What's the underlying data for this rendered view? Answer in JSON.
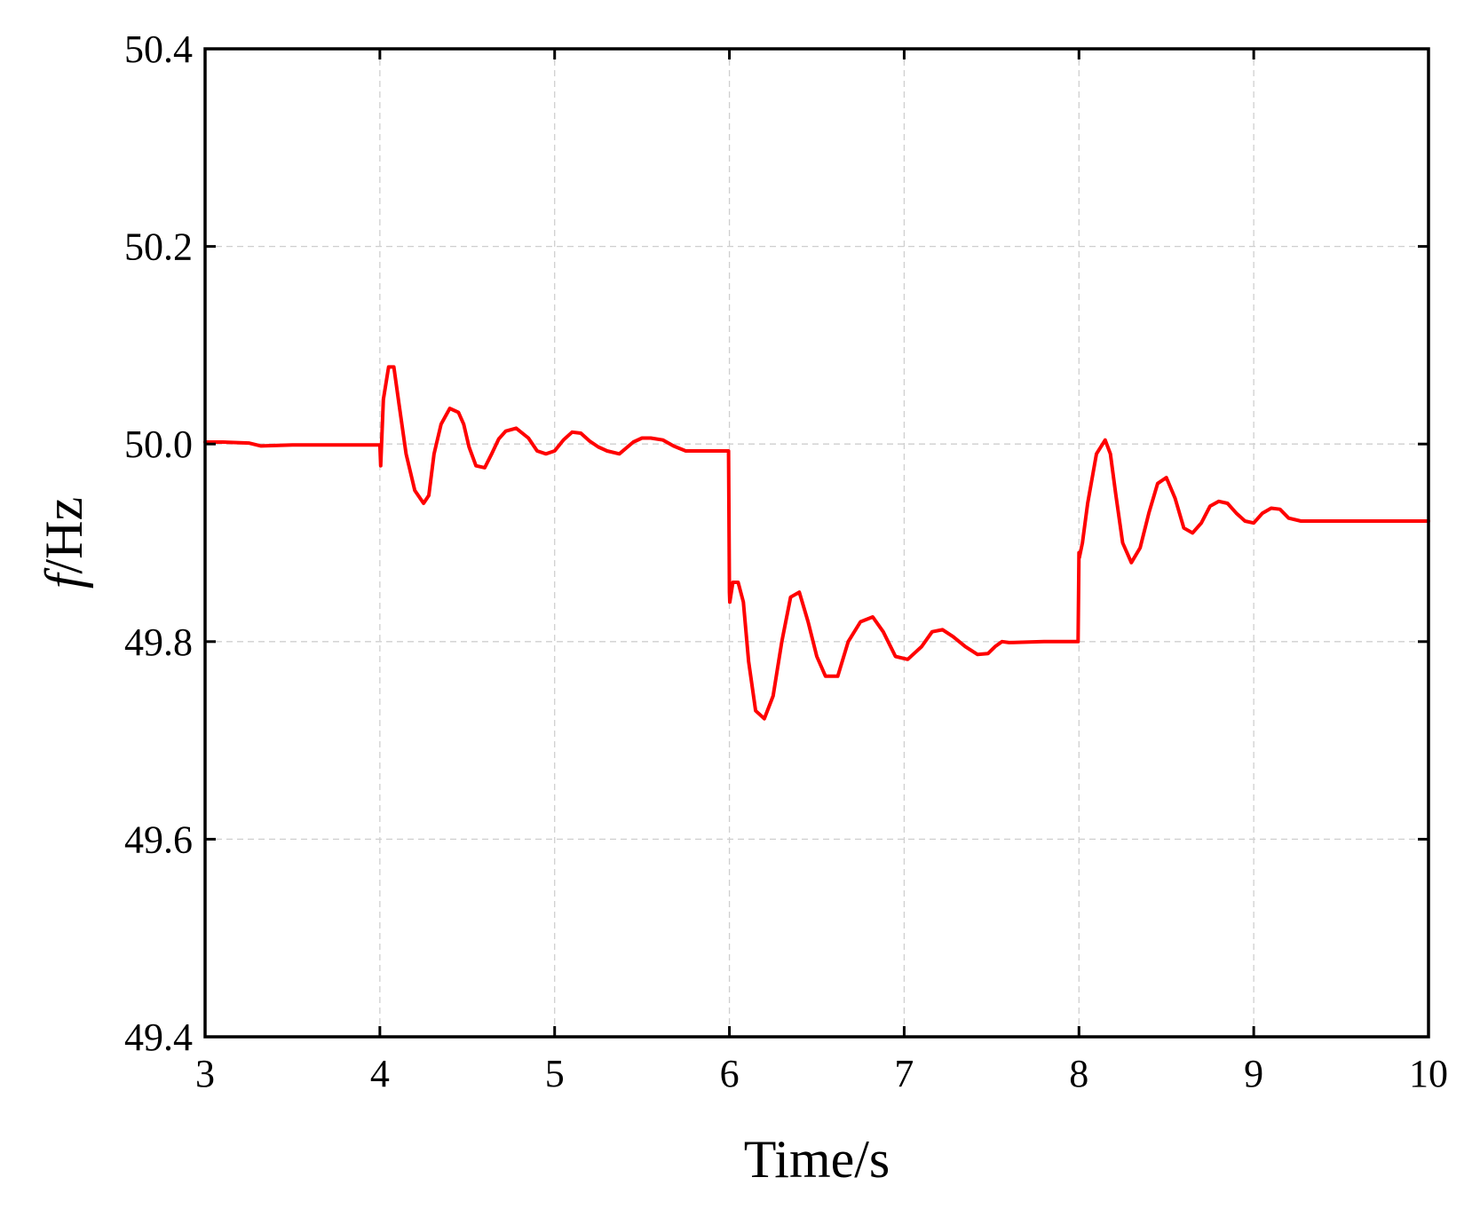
{
  "chart_data": {
    "type": "line",
    "title": "",
    "xlabel": "Time/s",
    "ylabel_italic": "f",
    "ylabel_rest": "/Hz",
    "xlim": [
      3,
      10
    ],
    "ylim": [
      49.4,
      50.4
    ],
    "xticks": [
      3,
      4,
      5,
      6,
      7,
      8,
      9,
      10
    ],
    "yticks": [
      49.4,
      49.6,
      49.8,
      50.0,
      50.2,
      50.4
    ],
    "xtick_labels": [
      "3",
      "4",
      "5",
      "6",
      "7",
      "8",
      "9",
      "10"
    ],
    "ytick_labels": [
      "49.4",
      "49.6",
      "49.8",
      "50.0",
      "50.2",
      "50.4"
    ],
    "grid": true,
    "legend": "none",
    "series": [
      {
        "color": "#ff0000",
        "x": [
          3.0,
          3.1,
          3.25,
          3.32,
          3.5,
          3.8,
          4.0,
          4.005,
          4.02,
          4.05,
          4.08,
          4.11,
          4.15,
          4.2,
          4.25,
          4.28,
          4.31,
          4.35,
          4.4,
          4.45,
          4.48,
          4.51,
          4.55,
          4.6,
          4.64,
          4.68,
          4.72,
          4.78,
          4.85,
          4.9,
          4.95,
          5.0,
          5.05,
          5.1,
          5.15,
          5.2,
          5.25,
          5.3,
          5.37,
          5.45,
          5.5,
          5.55,
          5.62,
          5.68,
          5.75,
          5.8,
          5.9,
          5.995,
          6.0,
          6.002,
          6.02,
          6.05,
          6.08,
          6.11,
          6.15,
          6.2,
          6.25,
          6.3,
          6.35,
          6.4,
          6.45,
          6.5,
          6.55,
          6.62,
          6.68,
          6.75,
          6.82,
          6.88,
          6.95,
          7.02,
          7.1,
          7.16,
          7.22,
          7.28,
          7.35,
          7.42,
          7.48,
          7.52,
          7.56,
          7.6,
          7.8,
          7.995,
          8.0,
          8.002,
          8.02,
          8.05,
          8.1,
          8.15,
          8.18,
          8.21,
          8.25,
          8.3,
          8.35,
          8.4,
          8.45,
          8.5,
          8.55,
          8.6,
          8.65,
          8.7,
          8.75,
          8.8,
          8.85,
          8.9,
          8.95,
          9.0,
          9.05,
          9.1,
          9.15,
          9.2,
          9.27,
          9.35,
          9.42,
          9.5,
          9.7,
          10.0
        ],
        "y": [
          50.002,
          50.002,
          50.001,
          49.998,
          49.999,
          49.999,
          49.999,
          49.978,
          50.045,
          50.078,
          50.078,
          50.04,
          49.99,
          49.953,
          49.94,
          49.948,
          49.99,
          50.02,
          50.036,
          50.032,
          50.02,
          49.997,
          49.978,
          49.976,
          49.99,
          50.005,
          50.013,
          50.016,
          50.006,
          49.993,
          49.99,
          49.993,
          50.004,
          50.012,
          50.011,
          50.003,
          49.997,
          49.993,
          49.99,
          50.002,
          50.006,
          50.006,
          50.004,
          49.998,
          49.993,
          49.993,
          49.993,
          49.993,
          49.85,
          49.84,
          49.86,
          49.86,
          49.84,
          49.78,
          49.73,
          49.722,
          49.745,
          49.8,
          49.845,
          49.85,
          49.82,
          49.785,
          49.765,
          49.765,
          49.8,
          49.82,
          49.825,
          49.81,
          49.785,
          49.782,
          49.795,
          49.81,
          49.812,
          49.805,
          49.795,
          49.787,
          49.788,
          49.795,
          49.8,
          49.799,
          49.8,
          49.8,
          49.89,
          49.885,
          49.9,
          49.94,
          49.99,
          50.004,
          49.99,
          49.95,
          49.9,
          49.88,
          49.895,
          49.93,
          49.96,
          49.966,
          49.945,
          49.915,
          49.91,
          49.92,
          49.937,
          49.942,
          49.94,
          49.93,
          49.922,
          49.92,
          49.93,
          49.935,
          49.934,
          49.925,
          49.922,
          49.922,
          49.922,
          49.922,
          49.922,
          49.922
        ]
      }
    ]
  }
}
